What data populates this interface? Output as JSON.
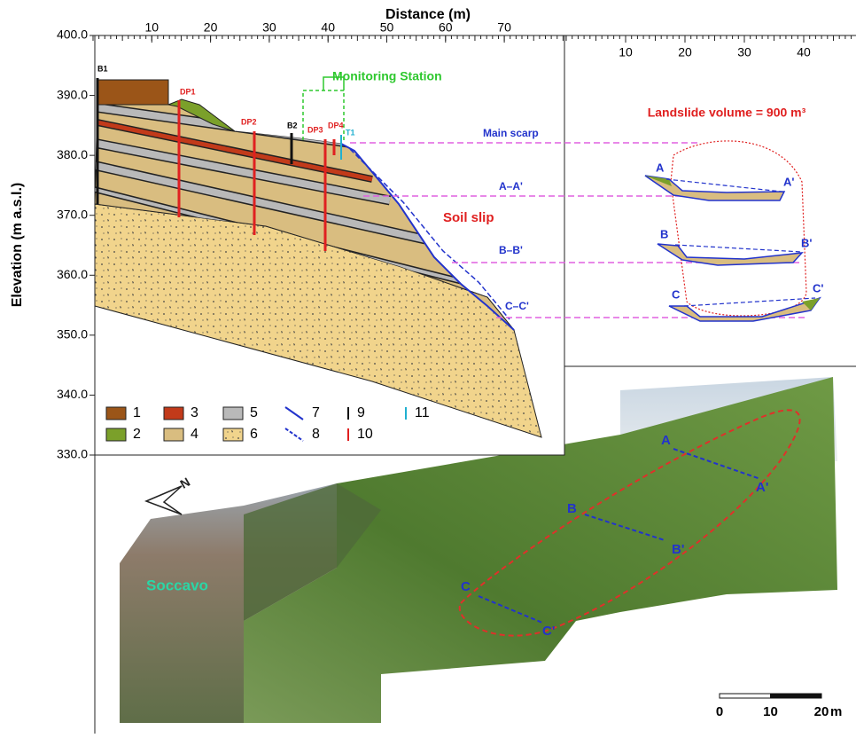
{
  "axes": {
    "x_title": "Distance (m)",
    "y_title": "Elevation (m a.s.l.)",
    "xticks": [
      10,
      20,
      30,
      40,
      50,
      60,
      70
    ],
    "yticks": [
      {
        "value": 400,
        "label": "400.0"
      },
      {
        "value": 390,
        "label": "390.0"
      },
      {
        "value": 380,
        "label": "380.0"
      },
      {
        "value": 370,
        "label": "370.0"
      },
      {
        "value": 360,
        "label": "360.0"
      },
      {
        "value": 350,
        "label": "350.0"
      },
      {
        "value": 340,
        "label": "340.0"
      },
      {
        "value": 330,
        "label": "330.0"
      }
    ],
    "right_xticks": [
      10,
      20,
      30,
      40
    ]
  },
  "labels": {
    "monitoring_station": "Monitoring Station",
    "soil_slip": "Soil slip",
    "main_scarp": "Main scarp",
    "a_a": "A–A'",
    "b_b": "B–B'",
    "c_c": "C–C'",
    "volume": "Landslide volume = 900 m³"
  },
  "boreholes": {
    "b1": "B1",
    "b2": "B2",
    "dp1": "DP1",
    "dp2": "DP2",
    "dp3": "DP3",
    "dp4": "DP4",
    "t1": "T1"
  },
  "sections": [
    "A",
    "A'",
    "B",
    "B'",
    "C",
    "C'"
  ],
  "photo": {
    "points": [
      "A",
      "A'",
      "B",
      "B'",
      "C",
      "C'"
    ],
    "place": "Soccavo",
    "north": "N"
  },
  "scale": {
    "ticks": [
      0,
      10,
      20
    ],
    "unit": "m"
  },
  "legend": [
    1,
    2,
    3,
    4,
    5,
    6,
    7,
    8,
    9,
    10,
    11
  ]
}
